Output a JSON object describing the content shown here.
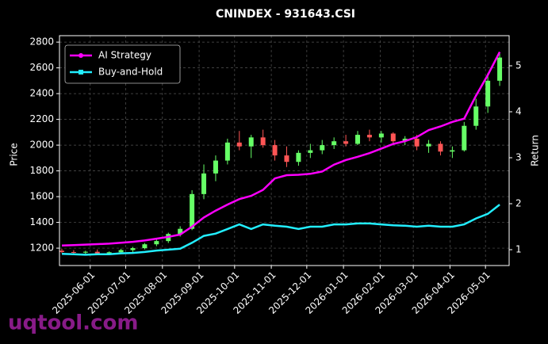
{
  "chart_data": {
    "type": "candlestick",
    "title": "CNINDEX - 931643.CSI",
    "ylabel": "Price",
    "y2label": "Return",
    "watermark": "uqtool.com",
    "x": [
      "2025-05-08",
      "2025-05-18",
      "2025-05-28",
      "2025-06-07",
      "2025-06-17",
      "2025-06-27",
      "2025-07-07",
      "2025-07-17",
      "2025-07-27",
      "2025-08-06",
      "2025-08-16",
      "2025-08-26",
      "2025-09-05",
      "2025-09-15",
      "2025-09-25",
      "2025-10-05",
      "2025-10-15",
      "2025-10-25",
      "2025-11-04",
      "2025-11-14",
      "2025-11-24",
      "2025-12-04",
      "2025-12-14",
      "2025-12-24",
      "2026-01-03",
      "2026-01-13",
      "2026-01-23",
      "2026-02-02",
      "2026-02-12",
      "2026-02-22",
      "2026-03-04",
      "2026-03-14",
      "2026-03-24",
      "2026-04-03",
      "2026-04-13",
      "2026-04-23",
      "2026-05-03",
      "2026-05-13"
    ],
    "open": [
      1180,
      1170,
      1165,
      1172,
      1160,
      1168,
      1185,
      1200,
      1230,
      1255,
      1310,
      1350,
      1620,
      1780,
      1880,
      2020,
      1990,
      2060,
      2000,
      1920,
      1870,
      1940,
      1960,
      2000,
      2030,
      2010,
      2080,
      2060,
      2090,
      2030,
      2050,
      1990,
      2010,
      1950,
      1960,
      2150,
      2300,
      2500
    ],
    "high": [
      1195,
      1185,
      1180,
      1190,
      1175,
      1195,
      1210,
      1240,
      1270,
      1320,
      1370,
      1650,
      1850,
      1920,
      2050,
      2110,
      2080,
      2120,
      2040,
      1990,
      1960,
      2010,
      2040,
      2060,
      2080,
      2110,
      2120,
      2110,
      2100,
      2070,
      2080,
      2040,
      2030,
      1990,
      2180,
      2360,
      2560,
      2720
    ],
    "low": [
      1160,
      1150,
      1150,
      1155,
      1145,
      1160,
      1170,
      1190,
      1215,
      1240,
      1290,
      1340,
      1580,
      1720,
      1850,
      1960,
      1900,
      1980,
      1880,
      1830,
      1840,
      1900,
      1930,
      1970,
      1990,
      2000,
      2030,
      2020,
      2010,
      2000,
      1960,
      1940,
      1920,
      1900,
      1950,
      2120,
      2250,
      2460
    ],
    "close": [
      1170,
      1165,
      1172,
      1160,
      1168,
      1185,
      1200,
      1230,
      1255,
      1310,
      1350,
      1620,
      1780,
      1880,
      2020,
      1990,
      2060,
      2000,
      1920,
      1870,
      1940,
      1960,
      2000,
      2030,
      2010,
      2080,
      2060,
      2090,
      2030,
      2050,
      1990,
      2010,
      1950,
      1960,
      2150,
      2300,
      2500,
      2680
    ],
    "up_color": "#66ff66",
    "down_color": "#ff5555",
    "series": [
      {
        "name": "AI Strategy",
        "color": "#ff00ff",
        "marker": "circle",
        "axis": "y2",
        "values": [
          1.09,
          1.1,
          1.11,
          1.12,
          1.13,
          1.15,
          1.17,
          1.2,
          1.24,
          1.28,
          1.33,
          1.5,
          1.7,
          1.85,
          1.98,
          2.1,
          2.17,
          2.3,
          2.55,
          2.62,
          2.63,
          2.65,
          2.7,
          2.85,
          2.95,
          3.02,
          3.1,
          3.2,
          3.3,
          3.36,
          3.45,
          3.6,
          3.68,
          3.78,
          3.85,
          4.35,
          4.8,
          5.3
        ]
      },
      {
        "name": "Buy-and-Hold",
        "color": "#22eeff",
        "marker": "square",
        "axis": "y2",
        "values": [
          0.91,
          0.9,
          0.89,
          0.9,
          0.9,
          0.92,
          0.93,
          0.95,
          0.98,
          1.0,
          1.02,
          1.15,
          1.3,
          1.35,
          1.45,
          1.55,
          1.45,
          1.55,
          1.52,
          1.5,
          1.45,
          1.5,
          1.5,
          1.55,
          1.55,
          1.57,
          1.57,
          1.55,
          1.53,
          1.52,
          1.5,
          1.52,
          1.5,
          1.5,
          1.55,
          1.68,
          1.78,
          1.98
        ]
      }
    ],
    "xlim": [
      "2025-05-06",
      "2026-05-21"
    ],
    "xticks": [
      "2025-06-01",
      "2025-07-01",
      "2025-08-01",
      "2025-09-01",
      "2025-10-01",
      "2025-11-01",
      "2025-12-01",
      "2026-01-01",
      "2026-02-01",
      "2026-03-01",
      "2026-04-01",
      "2026-05-01"
    ],
    "ylim": [
      1065,
      2850
    ],
    "yticks": [
      1200,
      1400,
      1600,
      1800,
      2000,
      2200,
      2400,
      2600,
      2800
    ],
    "y2lim": [
      0.655,
      5.655
    ],
    "y2ticks": [
      1,
      2,
      3,
      4,
      5
    ],
    "grid": true,
    "legend": "upper left"
  }
}
